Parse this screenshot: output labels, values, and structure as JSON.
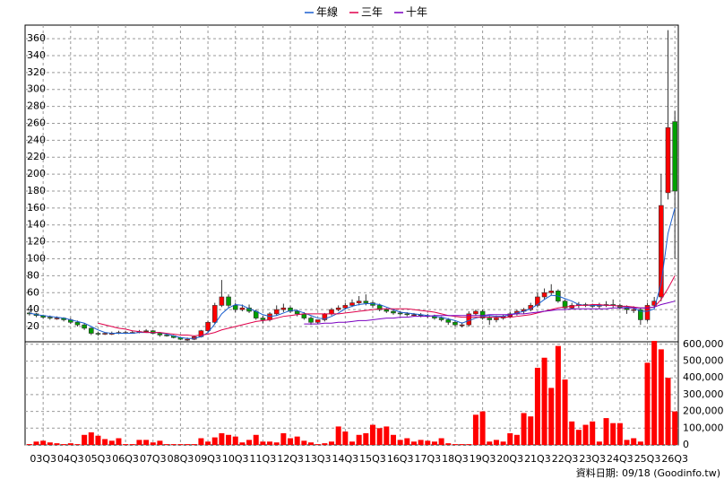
{
  "chart_data": {
    "type": "candlestick",
    "categories": [
      null,
      null,
      "03Q3",
      null,
      null,
      null,
      "04Q3",
      null,
      null,
      null,
      "05Q3",
      null,
      null,
      null,
      "06Q3",
      null,
      null,
      null,
      "07Q3",
      null,
      null,
      null,
      "08Q3",
      null,
      null,
      null,
      "09Q3",
      null,
      null,
      null,
      "10Q3",
      null,
      null,
      null,
      "11Q3",
      null,
      null,
      null,
      "12Q3",
      null,
      null,
      null,
      "13Q3",
      null,
      null,
      null,
      "14Q3",
      null,
      null,
      null,
      "15Q3",
      null,
      null,
      null,
      "16Q3",
      null,
      null,
      null,
      "17Q3",
      null,
      null,
      null,
      "18Q3",
      null,
      null,
      null,
      "19Q3",
      null,
      null,
      null,
      "20Q3",
      null,
      null,
      null,
      "21Q3",
      null,
      null,
      null,
      "22Q3",
      null,
      null,
      null,
      "23Q3",
      null,
      null,
      null,
      "24Q3",
      null,
      null,
      null,
      "25Q3",
      null,
      null,
      null,
      "26Q3"
    ],
    "open": [
      36,
      35,
      33,
      31,
      30,
      30,
      28,
      25,
      22,
      18,
      12,
      11,
      12,
      12,
      13,
      13,
      13,
      14,
      15,
      12,
      10,
      9,
      7,
      5,
      5,
      8,
      15,
      25,
      45,
      55,
      45,
      40,
      42,
      38,
      30,
      28,
      35,
      40,
      42,
      38,
      35,
      30,
      25,
      28,
      35,
      40,
      42,
      45,
      48,
      50,
      48,
      45,
      40,
      38,
      36,
      35,
      34,
      34,
      33,
      32,
      30,
      28,
      25,
      22,
      22,
      35,
      38,
      30,
      28,
      30,
      32,
      35,
      38,
      40,
      45,
      55,
      60,
      62,
      50,
      42,
      45,
      46,
      45,
      44,
      45,
      46,
      45,
      42,
      40,
      40,
      28,
      45,
      55,
      178,
      262
    ],
    "high": [
      38,
      36,
      34,
      33,
      32,
      31,
      30,
      27,
      24,
      19,
      14,
      13,
      14,
      15,
      15,
      15,
      16,
      17,
      16,
      13,
      11,
      10,
      8,
      7,
      9,
      16,
      27,
      48,
      75,
      58,
      48,
      46,
      46,
      40,
      33,
      37,
      45,
      47,
      44,
      40,
      37,
      32,
      28,
      36,
      42,
      45,
      48,
      52,
      56,
      58,
      50,
      47,
      42,
      40,
      38,
      37,
      36,
      36,
      35,
      34,
      32,
      30,
      27,
      25,
      38,
      40,
      40,
      33,
      33,
      34,
      37,
      40,
      42,
      48,
      60,
      65,
      70,
      64,
      52,
      48,
      49,
      48,
      47,
      48,
      50,
      52,
      47,
      45,
      44,
      42,
      48,
      55,
      200,
      370,
      275
    ],
    "low": [
      33,
      31,
      29,
      28,
      28,
      26,
      23,
      20,
      16,
      10,
      9,
      10,
      10,
      11,
      12,
      12,
      12,
      13,
      11,
      8,
      8,
      6,
      4,
      3,
      4,
      7,
      13,
      23,
      43,
      42,
      37,
      38,
      36,
      28,
      24,
      26,
      33,
      37,
      36,
      32,
      28,
      22,
      23,
      26,
      33,
      38,
      40,
      43,
      45,
      45,
      42,
      38,
      36,
      34,
      33,
      32,
      32,
      31,
      30,
      28,
      26,
      22,
      20,
      19,
      20,
      33,
      28,
      22,
      25,
      28,
      30,
      33,
      35,
      38,
      43,
      52,
      57,
      48,
      40,
      40,
      42,
      43,
      42,
      41,
      43,
      42,
      40,
      35,
      36,
      22,
      26,
      42,
      50,
      170,
      100
    ],
    "close": [
      35,
      33,
      31,
      30,
      30,
      28,
      25,
      22,
      18,
      12,
      11,
      12,
      12,
      13,
      13,
      13,
      14,
      15,
      12,
      10,
      9,
      7,
      5,
      5,
      8,
      15,
      25,
      45,
      55,
      45,
      40,
      42,
      38,
      30,
      28,
      35,
      40,
      42,
      38,
      35,
      30,
      25,
      28,
      35,
      40,
      42,
      45,
      48,
      50,
      48,
      45,
      40,
      38,
      36,
      35,
      34,
      34,
      33,
      32,
      30,
      28,
      25,
      22,
      22,
      35,
      38,
      30,
      28,
      30,
      32,
      35,
      38,
      40,
      45,
      55,
      60,
      62,
      50,
      42,
      45,
      46,
      45,
      44,
      45,
      46,
      45,
      42,
      40,
      40,
      28,
      45,
      50,
      163,
      255,
      180
    ],
    "up_color": "#ff0000",
    "down_color": "#00a000",
    "lines": [
      {
        "name": "年線",
        "color": "#1a5fd0",
        "values": [
          36,
          34,
          33,
          32,
          31,
          30,
          28,
          26,
          24,
          20,
          16,
          13,
          12,
          12,
          12,
          12,
          13,
          13,
          13,
          13,
          11,
          9,
          7,
          6,
          6,
          8,
          13,
          23,
          35,
          42,
          46,
          45,
          41,
          38,
          34,
          32,
          33,
          36,
          39,
          39,
          36,
          33,
          30,
          29,
          32,
          36,
          41,
          44,
          46,
          47,
          47,
          46,
          43,
          40,
          37,
          36,
          35,
          34,
          33,
          32,
          31,
          29,
          27,
          24,
          27,
          30,
          32,
          33,
          32,
          32,
          34,
          36,
          38,
          41,
          46,
          52,
          57,
          56,
          53,
          50,
          46,
          45,
          45,
          45,
          45,
          45,
          44,
          43,
          42,
          38,
          38,
          41,
          71,
          130,
          160
        ]
      },
      {
        "name": "三年",
        "color": "#e0004a",
        "values": [
          null,
          null,
          null,
          null,
          null,
          null,
          null,
          null,
          null,
          null,
          24,
          22,
          20,
          18,
          17,
          15,
          14,
          13,
          13,
          13,
          12,
          11,
          10,
          10,
          9,
          10,
          11,
          13,
          16,
          18,
          20,
          22,
          24,
          26,
          27,
          28,
          30,
          32,
          33,
          34,
          35,
          35,
          35,
          35,
          35,
          35,
          36,
          37,
          38,
          39,
          40,
          41,
          41,
          41,
          41,
          41,
          40,
          39,
          38,
          37,
          35,
          33,
          32,
          31,
          31,
          31,
          31,
          31,
          31,
          31,
          31,
          32,
          33,
          34,
          36,
          38,
          40,
          42,
          43,
          44,
          45,
          45,
          46,
          46,
          45,
          45,
          44,
          44,
          43,
          42,
          42,
          43,
          52,
          65,
          80
        ]
      },
      {
        "name": "十年",
        "color": "#7a00c0",
        "values": [
          null,
          null,
          null,
          null,
          null,
          null,
          null,
          null,
          null,
          null,
          null,
          null,
          null,
          null,
          null,
          null,
          null,
          null,
          null,
          null,
          null,
          null,
          null,
          null,
          null,
          null,
          null,
          null,
          null,
          null,
          null,
          null,
          null,
          null,
          null,
          null,
          null,
          null,
          null,
          null,
          23,
          23,
          23,
          24,
          24,
          25,
          25,
          26,
          27,
          27,
          28,
          29,
          30,
          30,
          31,
          31,
          32,
          32,
          32,
          33,
          33,
          33,
          33,
          33,
          33,
          33,
          33,
          34,
          34,
          34,
          34,
          35,
          35,
          36,
          37,
          38,
          39,
          40,
          40,
          41,
          41,
          41,
          41,
          41,
          41,
          42,
          42,
          42,
          42,
          42,
          42,
          43,
          46,
          48,
          50
        ]
      }
    ],
    "ylim": [
      2,
      376
    ],
    "yticks": [
      20,
      40,
      60,
      80,
      100,
      120,
      140,
      160,
      180,
      200,
      220,
      240,
      260,
      280,
      300,
      320,
      340,
      360
    ],
    "grid": true,
    "volume": {
      "color": "#ff0000",
      "ylim": [
        0,
        615000
      ],
      "yticks": [
        0,
        {
          "value": 100000,
          "label": "100,000"
        },
        {
          "value": 200000,
          "label": "200,000"
        },
        {
          "value": 300000,
          "label": "300,000"
        },
        {
          "value": 400000,
          "label": "400,000"
        },
        {
          "value": 500000,
          "label": "500,000"
        },
        {
          "value": 600000,
          "label": "600,000"
        }
      ],
      "values": [
        5000,
        20000,
        25000,
        15000,
        10000,
        5000,
        10000,
        5000,
        60000,
        75000,
        55000,
        35000,
        25000,
        40000,
        5000,
        5000,
        30000,
        30000,
        15000,
        25000,
        5000,
        5000,
        5000,
        5000,
        5000,
        40000,
        20000,
        45000,
        70000,
        60000,
        50000,
        15000,
        30000,
        60000,
        20000,
        20000,
        15000,
        70000,
        40000,
        50000,
        25000,
        15000,
        5000,
        10000,
        20000,
        110000,
        80000,
        20000,
        60000,
        70000,
        120000,
        100000,
        110000,
        60000,
        30000,
        40000,
        20000,
        30000,
        25000,
        20000,
        40000,
        10000,
        5000,
        5000,
        5000,
        180000,
        200000,
        20000,
        30000,
        20000,
        70000,
        60000,
        190000,
        170000,
        460000,
        520000,
        340000,
        590000,
        390000,
        140000,
        90000,
        120000,
        140000,
        20000,
        160000,
        130000,
        130000,
        30000,
        40000,
        20000,
        490000,
        620000,
        570000,
        400000,
        200000
      ]
    },
    "note": "資料日期: 09/18 (Goodinfo.tw)"
  }
}
